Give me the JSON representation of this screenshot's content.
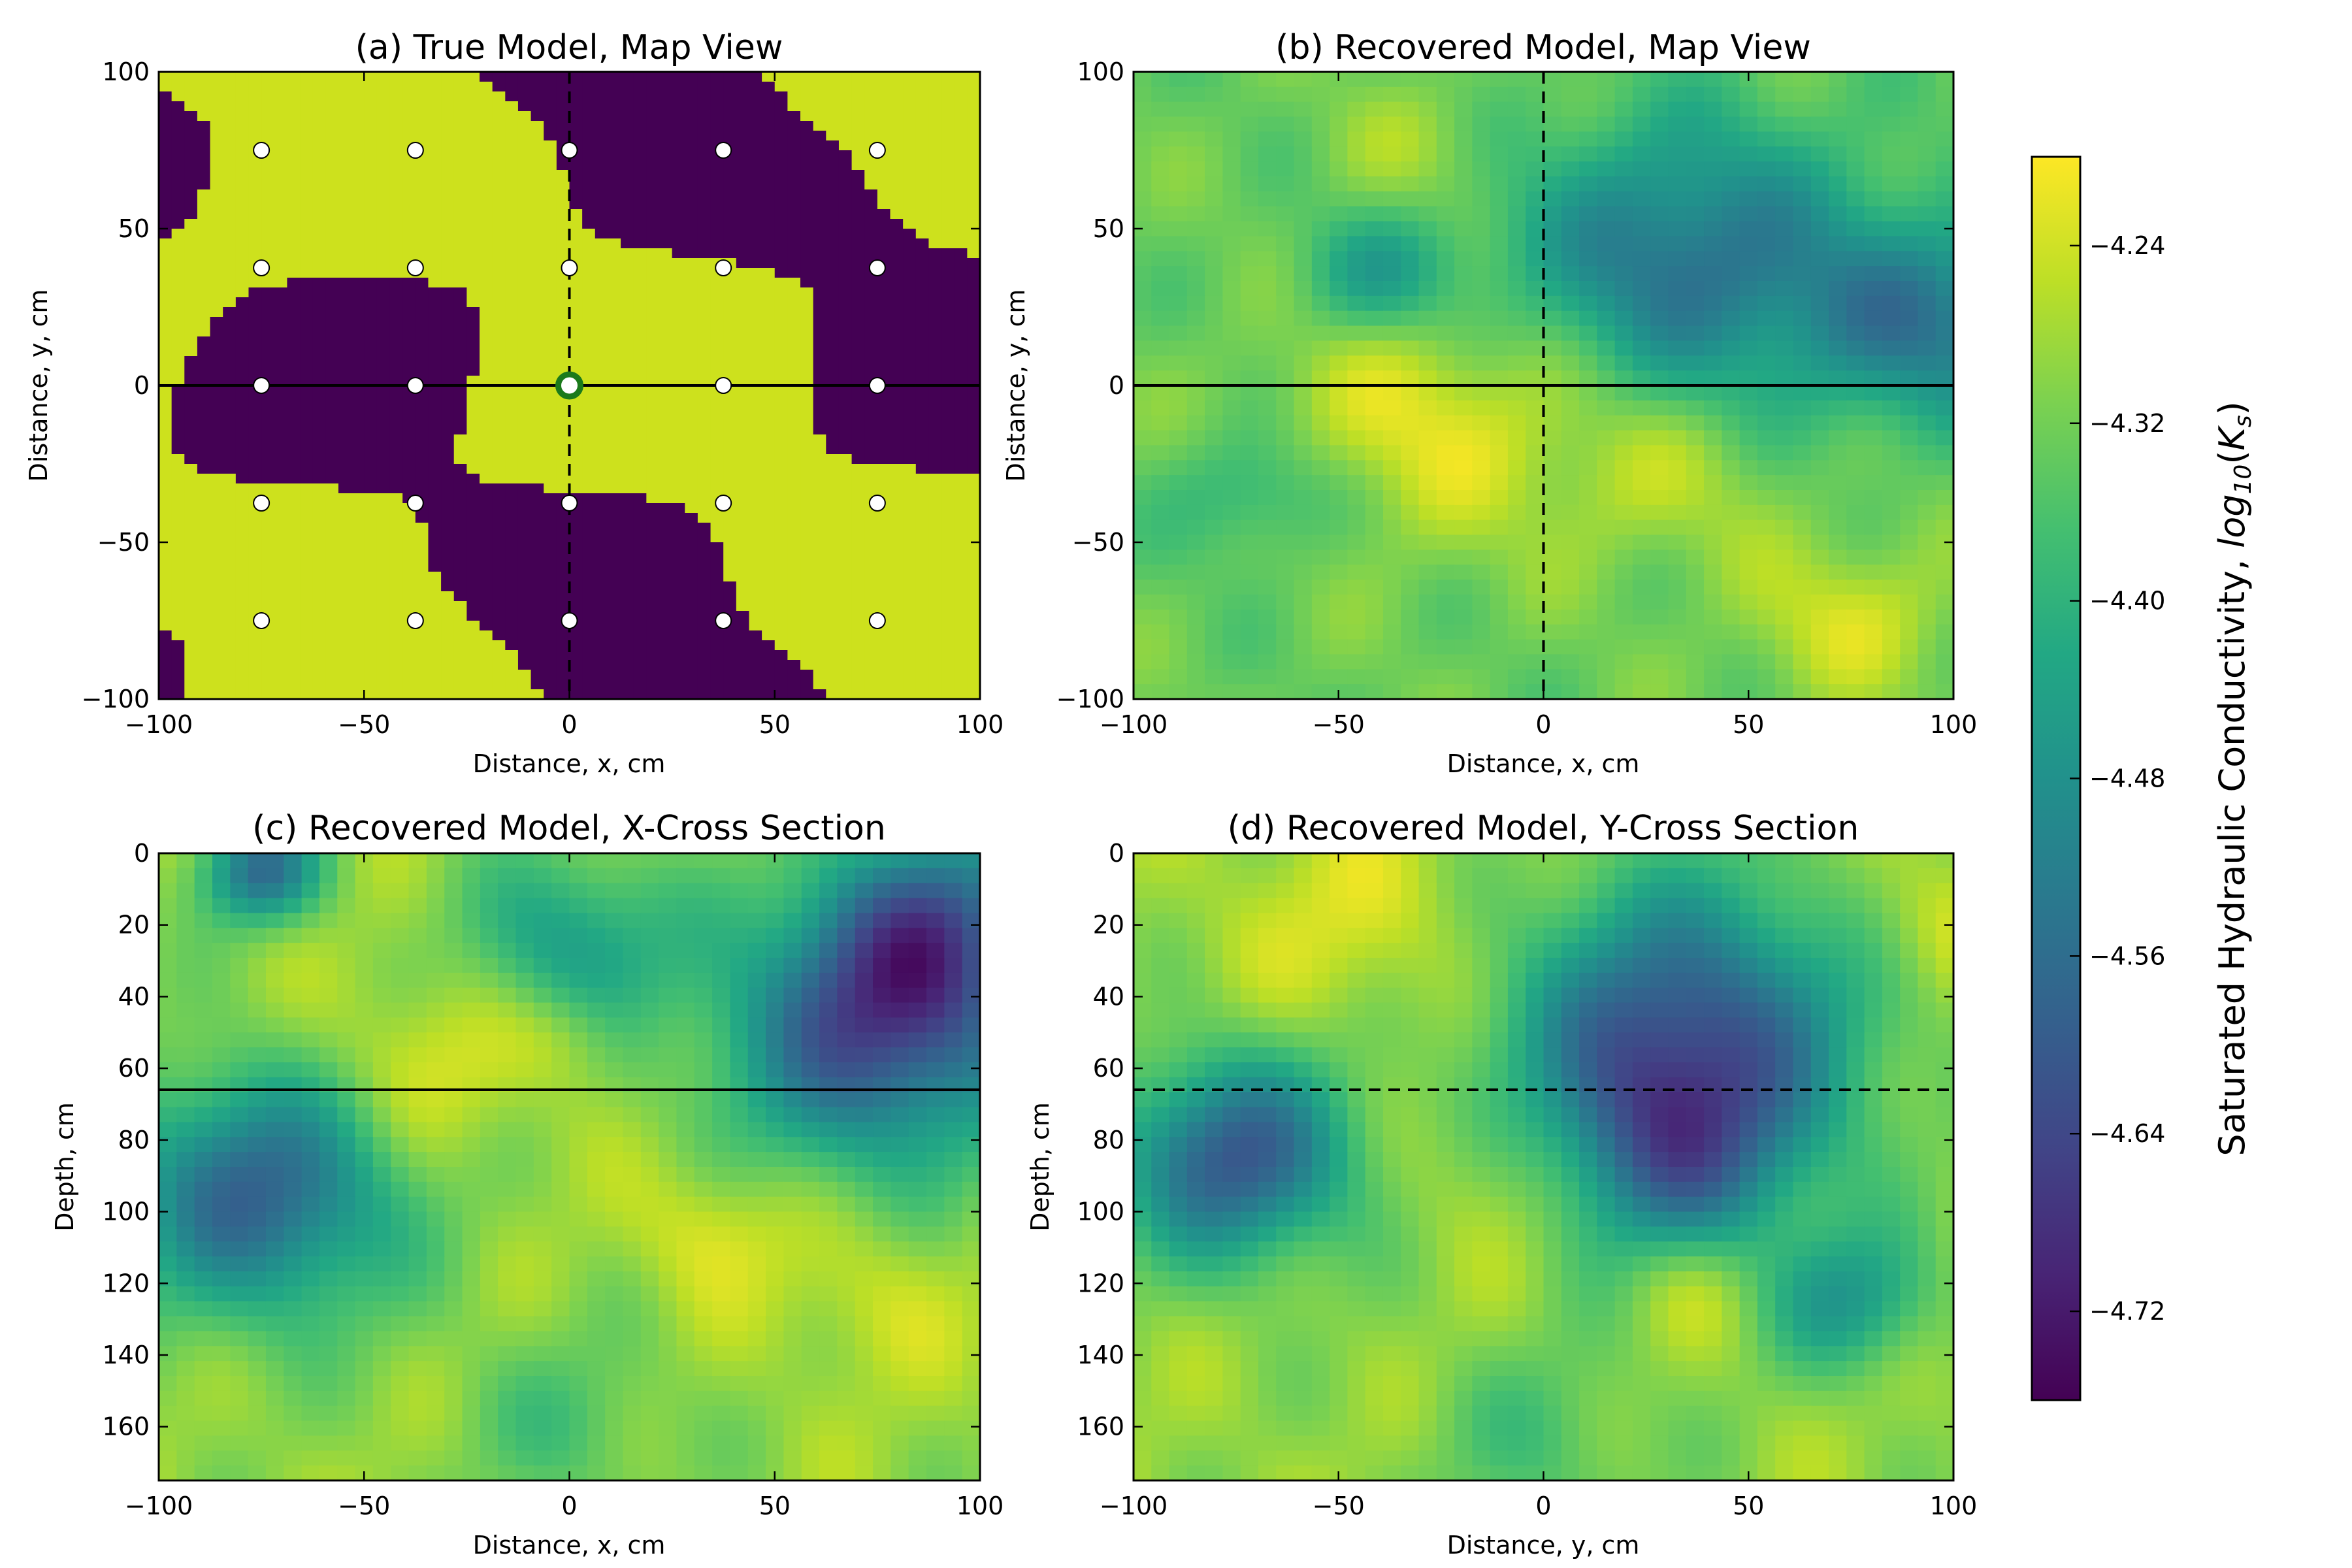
{
  "colors": {
    "viridis": [
      "#440154",
      "#482475",
      "#414487",
      "#355f8d",
      "#2a788e",
      "#21918c",
      "#22a884",
      "#44bf70",
      "#7ad151",
      "#bddf26",
      "#fde725"
    ],
    "true_low": "#440154",
    "true_high": "#cde11d",
    "sample_point": "#ffffff",
    "source_point": "#1b7a1b"
  },
  "colorbar": {
    "label": "Saturated Hydraulic Conductivity, log₁₀(Kₛ)",
    "label_prefix": "Saturated Hydraulic Conductivity, ",
    "label_math": "log",
    "label_sub": "10",
    "label_arg_open": "(",
    "label_arg": "K",
    "label_arg_sub": "s",
    "label_arg_close": ")",
    "vmin": -4.76,
    "vmax": -4.2,
    "ticks": [
      -4.24,
      -4.32,
      -4.4,
      -4.48,
      -4.56,
      -4.64,
      -4.72
    ],
    "tick_labels": [
      "−4.24",
      "−4.32",
      "−4.40",
      "−4.48",
      "−4.56",
      "−4.64",
      "−4.72"
    ]
  },
  "chart_data": [
    {
      "id": "a",
      "type": "heatmap",
      "title": "(a) True Model, Map View",
      "xlabel": "Distance, x, cm",
      "ylabel": "Distance, y, cm",
      "xlim": [
        -100,
        100
      ],
      "ylim": [
        -100,
        100
      ],
      "y_inverted": false,
      "xticks": [
        -100,
        -50,
        0,
        50,
        100
      ],
      "xtick_labels": [
        "−100",
        "−50",
        "0",
        "50",
        "100"
      ],
      "yticks": [
        -100,
        -50,
        0,
        50,
        100
      ],
      "ytick_labels": [
        "−100",
        "−50",
        "0",
        "50",
        "100"
      ],
      "field": "binary",
      "values_range": [
        -4.76,
        -4.22
      ],
      "vertical_line": {
        "x": 0,
        "style": "dashed"
      },
      "horizontal_line": {
        "y": 0,
        "style": "solid"
      },
      "sample_points": {
        "x": [
          -75,
          -37.5,
          0,
          37.5,
          75
        ],
        "y": [
          75,
          37.5,
          0,
          -37.5,
          -75
        ]
      },
      "source_point": {
        "x": 0,
        "y": 0
      }
    },
    {
      "id": "b",
      "type": "heatmap",
      "title": "(b) Recovered Model, Map View",
      "xlabel": "Distance, x, cm",
      "ylabel": "Distance, y, cm",
      "xlim": [
        -100,
        100
      ],
      "ylim": [
        -100,
        100
      ],
      "y_inverted": false,
      "xticks": [
        -100,
        -50,
        0,
        50,
        100
      ],
      "xtick_labels": [
        "−100",
        "−50",
        "0",
        "50",
        "100"
      ],
      "yticks": [
        -100,
        -50,
        0,
        50,
        100
      ],
      "ytick_labels": [
        "−100",
        "−50",
        "0",
        "50",
        "100"
      ],
      "field": "smooth",
      "blobs": [
        {
          "x": -25,
          "y": -10,
          "v": -4.22,
          "r": 28
        },
        {
          "x": 75,
          "y": -75,
          "v": -4.24,
          "r": 18
        },
        {
          "x": 35,
          "y": 40,
          "v": -4.55,
          "r": 30
        },
        {
          "x": 95,
          "y": 20,
          "v": -4.52,
          "r": 22
        },
        {
          "x": -40,
          "y": 35,
          "v": -4.45,
          "r": 14
        },
        {
          "x": -70,
          "y": -35,
          "v": -4.42,
          "r": 14
        },
        {
          "x": -30,
          "y": 75,
          "v": -4.28,
          "r": 16
        },
        {
          "x": 75,
          "y": 75,
          "v": -4.33,
          "r": 16
        },
        {
          "x": 30,
          "y": -30,
          "v": -4.27,
          "r": 20
        }
      ],
      "base": -4.33,
      "vertical_line": {
        "x": 0,
        "style": "dashed"
      },
      "horizontal_line": {
        "y": 0,
        "style": "solid"
      }
    },
    {
      "id": "c",
      "type": "heatmap",
      "title": "(c) Recovered Model, X-Cross Section",
      "xlabel": "Distance, x, cm",
      "ylabel": "Depth, cm",
      "xlim": [
        -100,
        100
      ],
      "ylim": [
        0,
        175
      ],
      "y_inverted": true,
      "xticks": [
        -100,
        -50,
        0,
        50,
        100
      ],
      "xtick_labels": [
        "−100",
        "−50",
        "0",
        "50",
        "100"
      ],
      "yticks": [
        0,
        20,
        40,
        60,
        80,
        100,
        120,
        140,
        160
      ],
      "ytick_labels": [
        "0",
        "20",
        "40",
        "60",
        "80",
        "100",
        "120",
        "140",
        "160"
      ],
      "field": "smooth",
      "blobs": [
        {
          "x": -75,
          "y": 95,
          "v": -4.58,
          "r": 24
        },
        {
          "x": 75,
          "y": 50,
          "v": -4.62,
          "r": 26
        },
        {
          "x": 90,
          "y": 20,
          "v": -4.52,
          "r": 20
        },
        {
          "x": 0,
          "y": 25,
          "v": -4.45,
          "r": 18
        },
        {
          "x": -75,
          "y": 5,
          "v": -4.55,
          "r": 10
        },
        {
          "x": -35,
          "y": 60,
          "v": -4.22,
          "r": 20
        },
        {
          "x": 35,
          "y": 105,
          "v": -4.22,
          "r": 14
        },
        {
          "x": 75,
          "y": 125,
          "v": -4.24,
          "r": 16
        },
        {
          "x": 0,
          "y": 50,
          "v": -4.24,
          "r": 10
        },
        {
          "x": 0,
          "y": 160,
          "v": -4.36,
          "r": 18
        }
      ],
      "base": -4.29,
      "horizontal_line": {
        "y": 66,
        "style": "solid"
      }
    },
    {
      "id": "d",
      "type": "heatmap",
      "title": "(d) Recovered Model, Y-Cross Section",
      "xlabel": "Distance, y, cm",
      "ylabel": "Depth, cm",
      "xlim": [
        -100,
        100
      ],
      "ylim": [
        0,
        175
      ],
      "y_inverted": true,
      "xticks": [
        -100,
        -50,
        0,
        50,
        100
      ],
      "xtick_labels": [
        "−100",
        "−50",
        "0",
        "50",
        "100"
      ],
      "yticks": [
        0,
        20,
        40,
        60,
        80,
        100,
        120,
        140,
        160
      ],
      "ytick_labels": [
        "0",
        "20",
        "40",
        "60",
        "80",
        "100",
        "120",
        "140",
        "160"
      ],
      "field": "smooth",
      "blobs": [
        {
          "x": 35,
          "y": 50,
          "v": -4.6,
          "r": 30
        },
        {
          "x": 30,
          "y": 85,
          "v": -4.5,
          "r": 22
        },
        {
          "x": -75,
          "y": 85,
          "v": -4.6,
          "r": 20
        },
        {
          "x": -5,
          "y": 90,
          "v": -4.22,
          "r": 18
        },
        {
          "x": -45,
          "y": 20,
          "v": -4.23,
          "r": 22
        },
        {
          "x": 95,
          "y": 20,
          "v": -4.23,
          "r": 14
        },
        {
          "x": 35,
          "y": 120,
          "v": -4.22,
          "r": 12
        },
        {
          "x": 75,
          "y": 125,
          "v": -4.45,
          "r": 14
        },
        {
          "x": 0,
          "y": 165,
          "v": -4.36,
          "r": 20
        }
      ],
      "base": -4.29,
      "horizontal_line": {
        "y": 66,
        "style": "dashed"
      }
    }
  ]
}
